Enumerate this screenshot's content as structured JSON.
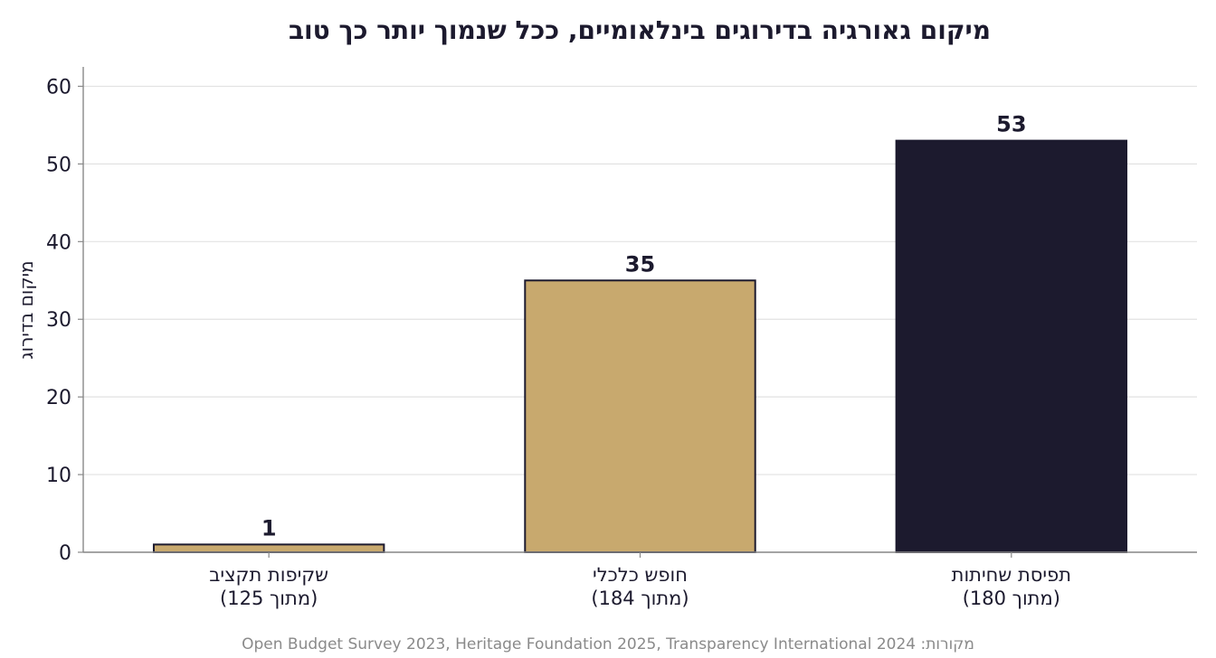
{
  "chart_data": {
    "type": "bar",
    "title": "מיקום גאורגיה בדירוגים בינלאומיים, ככל שנמוך יותר כך טוב",
    "ylabel": "מיקום בדירוג",
    "xlabel": "",
    "ylim": [
      0,
      62.5
    ],
    "yticks": [
      0,
      10,
      20,
      30,
      40,
      50,
      60
    ],
    "grid": true,
    "categories": [
      {
        "line1": "שקיפות תקציב",
        "line2": "(מתוך 125)"
      },
      {
        "line1": "חופש כלכלי",
        "line2": "(מתוך 184)"
      },
      {
        "line1": "תפיסת שחיתות",
        "line2": "(מתוך 180)"
      }
    ],
    "values": [
      1,
      35,
      53
    ],
    "value_labels": [
      "1",
      "35",
      "53"
    ],
    "bar_colors": [
      "#c8a96e",
      "#c8a96e",
      "#1c1a2e"
    ],
    "source": "מקורות: Open Budget Survey 2023, Heritage Foundation 2025, Transparency International 2024"
  },
  "colors": {
    "text": "#1c1a2e",
    "grid": "#e2e2e2",
    "axis": "#888888",
    "bar_edge": "#1c1a2e",
    "source": "#8a8a8a"
  }
}
